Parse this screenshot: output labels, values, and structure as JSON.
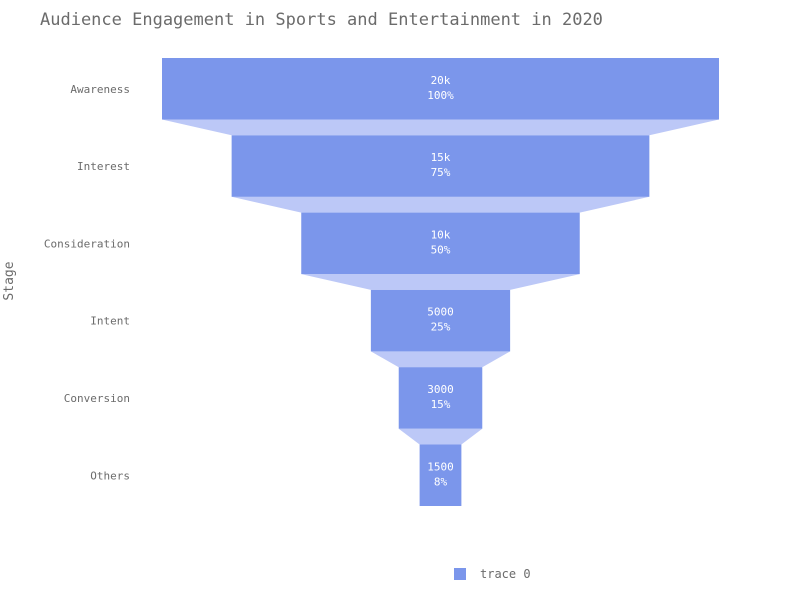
{
  "chart_data": {
    "type": "funnel",
    "title": "Audience Engagement in Sports and Entertainment in 2020",
    "ylabel": "Stage",
    "categories": [
      "Awareness",
      "Interest",
      "Consideration",
      "Intent",
      "Conversion",
      "Others"
    ],
    "series": [
      {
        "name": "trace 0",
        "values": [
          20000,
          15000,
          10000,
          5000,
          3000,
          1500
        ],
        "value_labels": [
          "20k",
          "15k",
          "10k",
          "5000",
          "3000",
          "1500"
        ],
        "percent_labels": [
          "100%",
          "75%",
          "50%",
          "25%",
          "15%",
          "8%"
        ]
      }
    ],
    "bar_color": "#7b96eb",
    "connector_color": "#bcc8f7",
    "legend_position": "bottom-center"
  }
}
